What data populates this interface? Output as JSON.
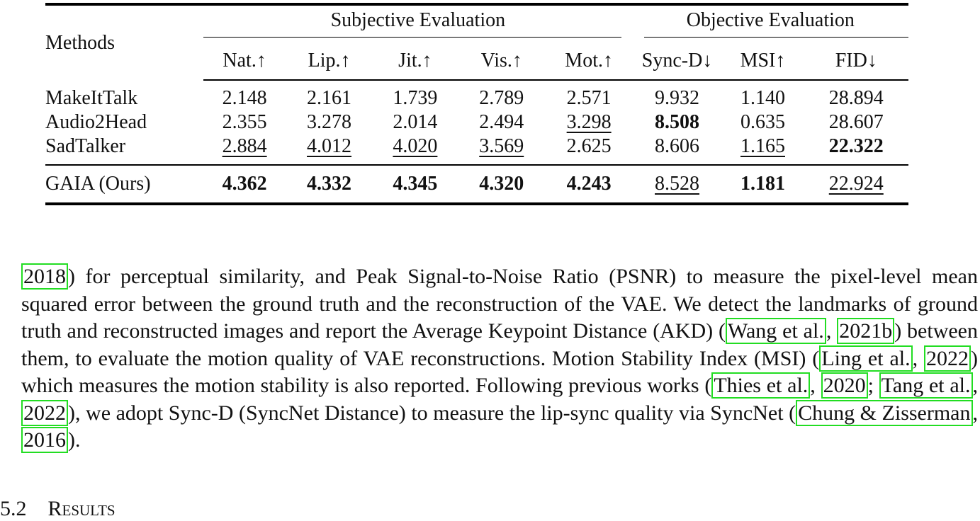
{
  "table": {
    "methods_header": "Methods",
    "groups": [
      "Subjective Evaluation",
      "Objective Evaluation"
    ],
    "columns": [
      "Nat.↑",
      "Lip.↑",
      "Jit.↑",
      "Vis.↑",
      "Mot.↑",
      "Sync-D↓",
      "MSI↑",
      "FID↓"
    ],
    "rows": [
      {
        "method": "MakeItTalk",
        "values": [
          "2.148",
          "2.161",
          "1.739",
          "2.789",
          "2.571",
          "9.932",
          "1.140",
          "28.894"
        ]
      },
      {
        "method": "Audio2Head",
        "values": [
          "2.355",
          "3.278",
          "2.014",
          "2.494",
          "3.298",
          "8.508",
          "0.635",
          "28.607"
        ]
      },
      {
        "method": "SadTalker",
        "values": [
          "2.884",
          "4.012",
          "4.020",
          "3.569",
          "2.625",
          "8.606",
          "1.165",
          "22.322"
        ]
      },
      {
        "method": "GAIA (Ours)",
        "values": [
          "4.362",
          "4.332",
          "4.345",
          "4.320",
          "4.243",
          "8.528",
          "1.181",
          "22.924"
        ]
      }
    ]
  },
  "paragraph": {
    "t1": "2018",
    "t2": ") for perceptual similarity, and Peak Signal-to-Noise Ratio (PSNR) to measure the pixel-level mean squared error between the ground truth and the reconstruction of the VAE. We detect the landmarks of ground truth and reconstructed images and report the Average Keypoint Distance (AKD) (",
    "t3": "Wang et al.",
    "t4": ", ",
    "t5": "2021b",
    "t6": ") between them, to evaluate the motion quality of VAE reconstructions. Motion Stability Index (MSI) (",
    "t7": "Ling et al.",
    "t8": ", ",
    "t9": "2022",
    "t10": ") which measures the motion stability is also reported.  Following previous works (",
    "t11": "Thies et al.",
    "t12": ", ",
    "t13": "2020",
    "t14": "; ",
    "t15": "Tang et al.",
    "t16": ", ",
    "t17": "2022",
    "t18": "), we adopt Sync-D (SyncNet Distance) to measure the lip-sync quality via SyncNet (",
    "t19": "Chung & Zisserman",
    "t20": ", ",
    "t21": "2016",
    "t22": ")."
  },
  "section": {
    "number": "5.2",
    "title": "Results"
  },
  "colors": {
    "citation_box": "#22dd22"
  }
}
